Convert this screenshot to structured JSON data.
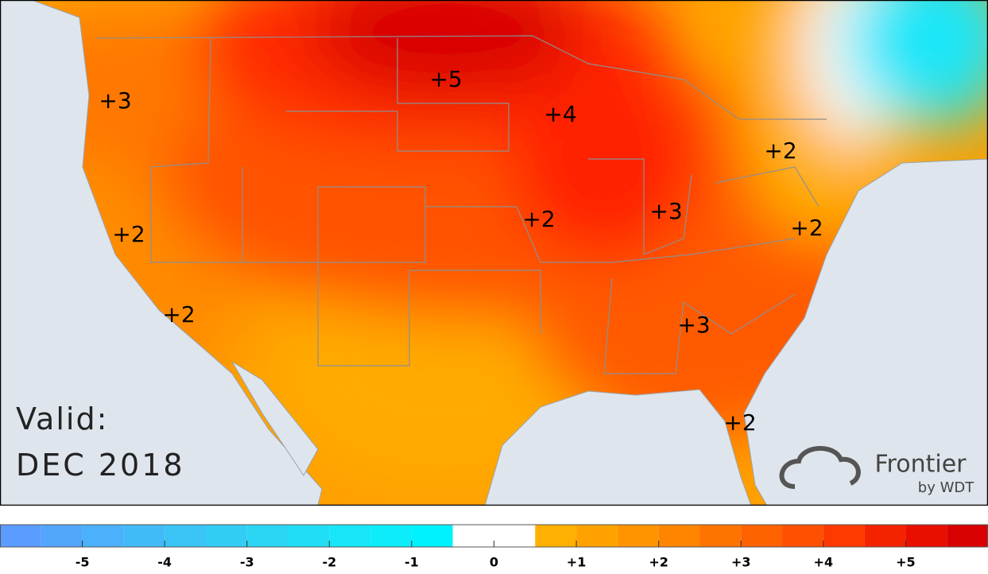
{
  "map": {
    "labels": [
      {
        "value": 3,
        "label": "+3"
      },
      {
        "value": 5,
        "label": "+5"
      },
      {
        "value": 4,
        "label": "+4"
      },
      {
        "value": 2,
        "label": "+2"
      },
      {
        "value": 2,
        "label": "+2"
      },
      {
        "value": 2,
        "label": "+2"
      },
      {
        "value": 3,
        "label": "+3"
      },
      {
        "value": 2,
        "label": "+2"
      },
      {
        "value": 2,
        "label": "+2"
      },
      {
        "value": 3,
        "label": "+3"
      },
      {
        "value": 2,
        "label": "+2"
      }
    ],
    "valid_label": "Valid:",
    "valid_date": "DEC 2018",
    "logo_name": "Frontier",
    "logo_sub": "by WDT"
  },
  "legend": {
    "range": [
      -6,
      6
    ],
    "bounds": [
      -6,
      -5.5,
      -5,
      -4.5,
      -4,
      -3.5,
      -3,
      -2.5,
      -2,
      -1.5,
      -1,
      -0.5,
      0.5,
      1,
      1.5,
      2,
      2.5,
      3,
      3.5,
      4,
      4.5,
      5,
      5.5,
      6
    ],
    "colors": [
      "#5a9cff",
      "#52a6fc",
      "#4ab1fa",
      "#41bbf8",
      "#3ac4f6",
      "#32cdf5",
      "#2ad5f4",
      "#20def5",
      "#16e6f7",
      "#0cecfa",
      "#00f2fe",
      "#ffffff",
      "#ffb000",
      "#ffa200",
      "#ff9400",
      "#ff8500",
      "#ff7400",
      "#ff6200",
      "#ff4f00",
      "#ff3a00",
      "#f52200",
      "#e80e00",
      "#d80000"
    ],
    "ticks": [
      -5,
      -4,
      -3,
      -2,
      -1,
      0,
      {
        "value": 1,
        "label": "+1"
      },
      {
        "value": 2,
        "label": "+2"
      },
      {
        "value": 3,
        "label": "+3"
      },
      {
        "value": 4,
        "label": "+4"
      },
      {
        "value": 5,
        "label": "+5"
      }
    ]
  }
}
